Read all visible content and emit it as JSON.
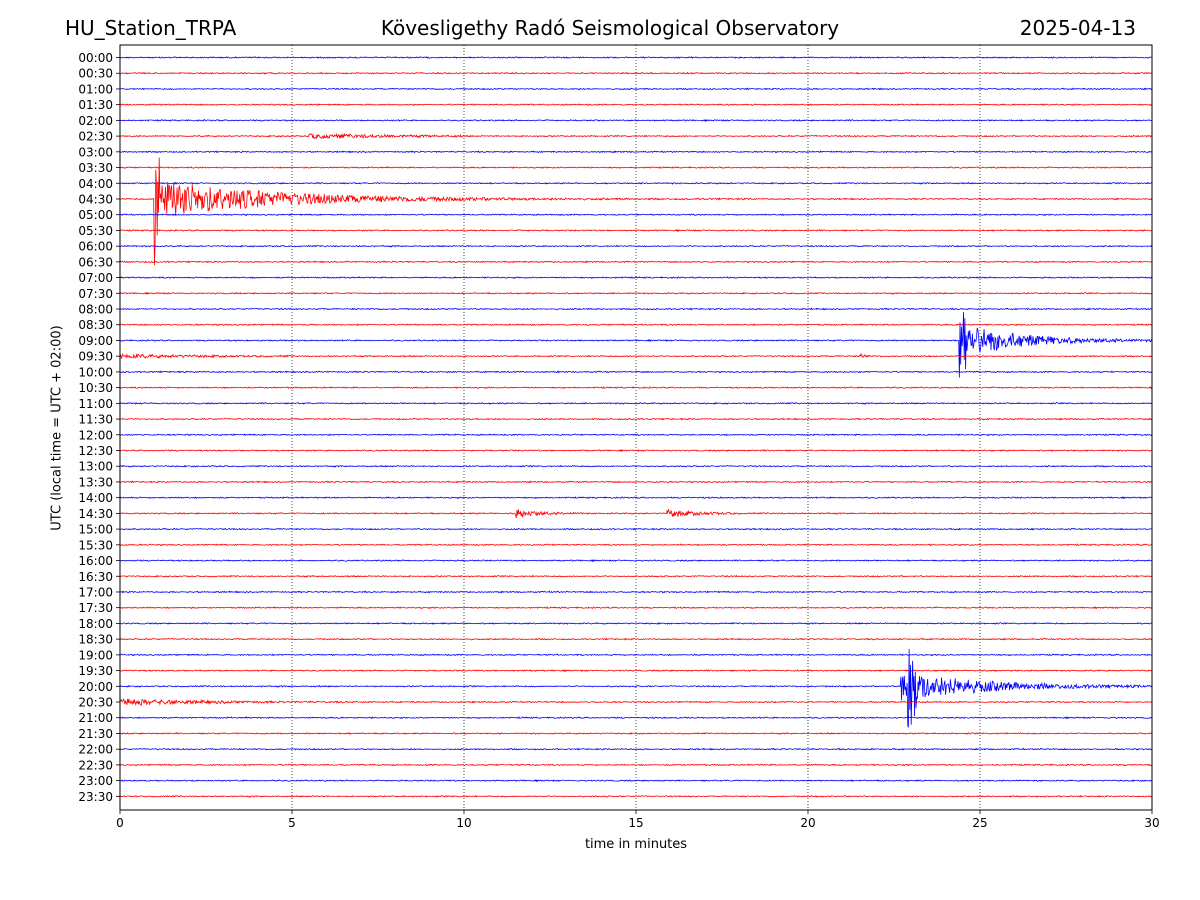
{
  "header": {
    "station": "HU_Station_TRPA",
    "observatory": "Kövesligethy Radó Seismological Observatory",
    "date": "2025-04-13"
  },
  "chart_data": {
    "type": "line",
    "title": "Kövesligethy Radó Seismological Observatory",
    "xlabel": "time in minutes",
    "ylabel": "UTC (local time = UTC + 02:00)",
    "xlim": [
      0,
      30
    ],
    "xticks": [
      0,
      5,
      10,
      15,
      20,
      25,
      30
    ],
    "grid": "vertical dotted lines at x ticks",
    "trace_colors": [
      "#0000ff",
      "#ff0000"
    ],
    "rows": [
      "00:00",
      "00:30",
      "01:00",
      "01:30",
      "02:00",
      "02:30",
      "03:00",
      "03:30",
      "04:00",
      "04:30",
      "05:00",
      "05:30",
      "06:00",
      "06:30",
      "07:00",
      "07:30",
      "08:00",
      "08:30",
      "09:00",
      "09:30",
      "10:00",
      "10:30",
      "11:00",
      "11:30",
      "12:00",
      "12:30",
      "13:00",
      "13:30",
      "14:00",
      "14:30",
      "15:00",
      "15:30",
      "16:00",
      "16:30",
      "17:00",
      "17:30",
      "18:00",
      "18:30",
      "19:00",
      "19:30",
      "20:00",
      "20:30",
      "21:00",
      "21:30",
      "22:00",
      "22:30",
      "23:00",
      "23:30"
    ],
    "noise_level": 0.06,
    "events": [
      {
        "row": "04:30",
        "start": 1.0,
        "end": 18.5,
        "peak": 2.6,
        "decay": 3.2
      },
      {
        "row": "04:30",
        "start": 1.0,
        "end": 1.15,
        "peak": 9.5,
        "decay": 0.15
      },
      {
        "row": "02:30",
        "start": 5.5,
        "end": 10.0,
        "peak": 0.28,
        "decay": 2.5
      },
      {
        "row": "09:30",
        "start": 0.0,
        "end": 5.0,
        "peak": 0.22,
        "decay": 2.5
      },
      {
        "row": "09:30",
        "start": 21.5,
        "end": 21.8,
        "peak": 0.35,
        "decay": 0.2
      },
      {
        "row": "09:00",
        "start": 24.5,
        "end": 30.0,
        "peak": 2.2,
        "decay": 1.6
      },
      {
        "row": "09:00",
        "start": 24.4,
        "end": 24.6,
        "peak": 7.0,
        "decay": 0.12
      },
      {
        "row": "14:30",
        "start": 11.5,
        "end": 13.5,
        "peak": 0.6,
        "decay": 0.6
      },
      {
        "row": "14:30",
        "start": 15.9,
        "end": 18.0,
        "peak": 0.45,
        "decay": 0.9
      },
      {
        "row": "20:00",
        "start": 22.7,
        "end": 30.0,
        "peak": 2.0,
        "decay": 2.2
      },
      {
        "row": "20:00",
        "start": 22.9,
        "end": 23.15,
        "peak": 7.8,
        "decay": 0.18
      },
      {
        "row": "20:30",
        "start": 0.0,
        "end": 7.0,
        "peak": 0.45,
        "decay": 2.0
      }
    ]
  }
}
